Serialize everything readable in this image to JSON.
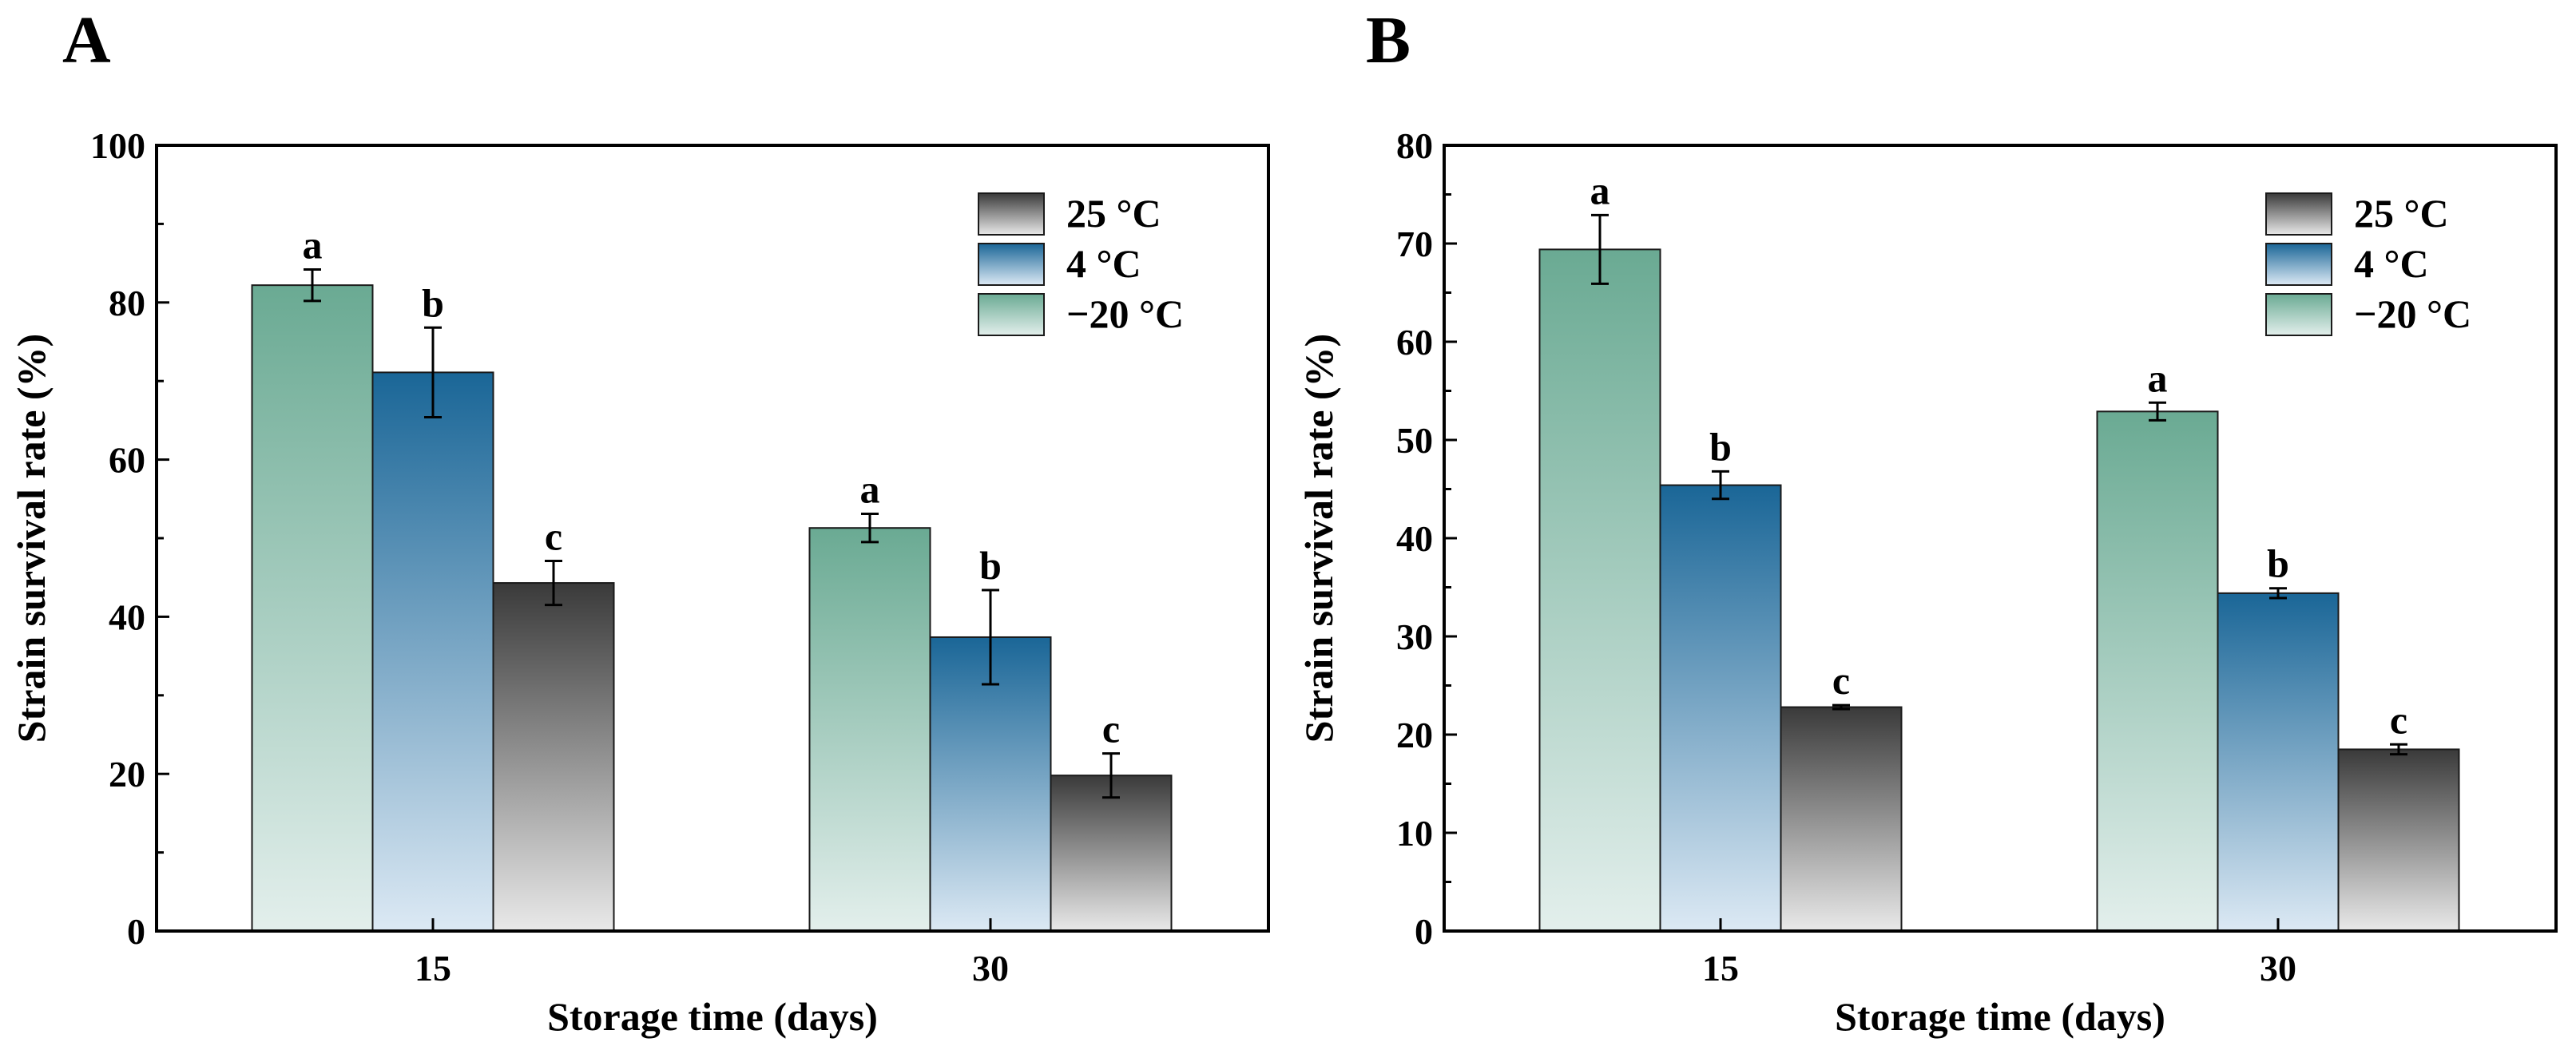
{
  "chart_data": [
    {
      "type": "bar",
      "panel": "A",
      "xlabel": "Storage time (days)",
      "ylabel": "Strain survival rate (%)",
      "ylim": [
        0,
        100
      ],
      "yticks": [
        "0",
        "20",
        "40",
        "60",
        "80",
        "100"
      ],
      "categories": [
        "15",
        "30"
      ],
      "series": [
        {
          "name": "−20 °C",
          "values": [
            82.2,
            51.3
          ],
          "errors": [
            2.0,
            1.8
          ],
          "labels": [
            "a",
            "a"
          ],
          "color": "#6aaa93"
        },
        {
          "name": "4 °C",
          "values": [
            71.1,
            37.4
          ],
          "errors": [
            5.7,
            6.0
          ],
          "labels": [
            "b",
            "b"
          ],
          "color": "#1a6697"
        },
        {
          "name": "25 °C",
          "values": [
            44.3,
            19.8
          ],
          "errors": [
            2.8,
            2.8
          ],
          "labels": [
            "c",
            "c"
          ],
          "color": "#3a3a3a"
        }
      ],
      "legend": [
        "25 °C",
        "4 °C",
        "−20 °C"
      ],
      "legend_position": "top-right"
    },
    {
      "type": "bar",
      "panel": "B",
      "xlabel": "Storage time (days)",
      "ylabel": "Strain survival rate (%)",
      "ylim": [
        0,
        80
      ],
      "yticks": [
        "0",
        "10",
        "20",
        "30",
        "40",
        "50",
        "60",
        "70",
        "80"
      ],
      "categories": [
        "15",
        "30"
      ],
      "series": [
        {
          "name": "−20 °C",
          "values": [
            69.4,
            52.9
          ],
          "errors": [
            3.5,
            0.9
          ],
          "labels": [
            "a",
            "a"
          ],
          "color": "#6aaa93"
        },
        {
          "name": "4 °C",
          "values": [
            45.4,
            34.4
          ],
          "errors": [
            1.4,
            0.5
          ],
          "labels": [
            "b",
            "b"
          ],
          "color": "#1a6697"
        },
        {
          "name": "25 °C",
          "values": [
            22.8,
            18.5
          ],
          "errors": [
            0.2,
            0.5
          ],
          "labels": [
            "c",
            "c"
          ],
          "color": "#3a3a3a"
        }
      ],
      "legend": [
        "25 °C",
        "4 °C",
        "−20 °C"
      ],
      "legend_position": "top-right"
    }
  ]
}
